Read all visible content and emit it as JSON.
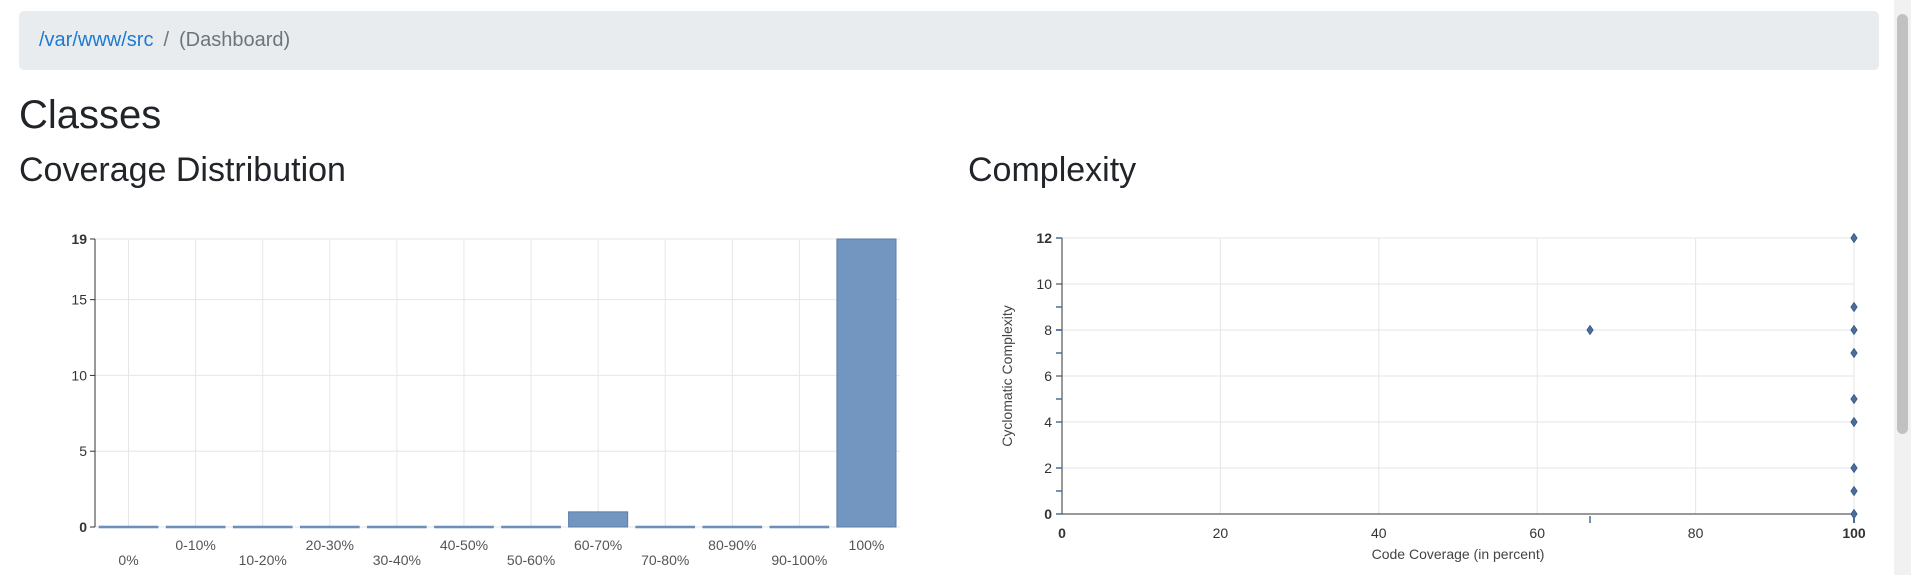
{
  "breadcrumb": {
    "path": "/var/www/src",
    "separator": "/",
    "current": "(Dashboard)"
  },
  "page_title": "Classes",
  "coverage_title": "Coverage Distribution",
  "complexity_title": "Complexity",
  "colors": {
    "bar": "#7396c0",
    "point": "#4a6d9c",
    "grid": "#e6e6e6",
    "axis": "#333333",
    "link": "#1f7ad1"
  },
  "chart_data": [
    {
      "type": "bar",
      "title": "",
      "categories": [
        "0%",
        "0-10%",
        "10-20%",
        "20-30%",
        "30-40%",
        "40-50%",
        "50-60%",
        "60-70%",
        "70-80%",
        "80-90%",
        "90-100%",
        "100%"
      ],
      "values": [
        0,
        0,
        0,
        0,
        0,
        0,
        0,
        1,
        0,
        0,
        0,
        19
      ],
      "yticks": [
        0,
        5,
        10,
        15,
        19
      ],
      "ylim": [
        0,
        19
      ],
      "xlabel": "",
      "ylabel": "",
      "grid": true
    },
    {
      "type": "scatter",
      "title": "",
      "xlabel": "Code Coverage (in percent)",
      "ylabel": "Cyclomatic Complexity",
      "xlim": [
        0,
        100
      ],
      "ylim": [
        0,
        12
      ],
      "xticks": [
        0,
        20,
        40,
        60,
        80,
        100
      ],
      "yticks": [
        0,
        2,
        4,
        6,
        8,
        10,
        12
      ],
      "points": [
        {
          "x": 66.67,
          "y": 8
        },
        {
          "x": 100,
          "y": 12
        },
        {
          "x": 100,
          "y": 9
        },
        {
          "x": 100,
          "y": 8
        },
        {
          "x": 100,
          "y": 7
        },
        {
          "x": 100,
          "y": 5
        },
        {
          "x": 100,
          "y": 4
        },
        {
          "x": 100,
          "y": 2
        },
        {
          "x": 100,
          "y": 1
        },
        {
          "x": 100,
          "y": 0
        }
      ],
      "grid": true
    }
  ]
}
